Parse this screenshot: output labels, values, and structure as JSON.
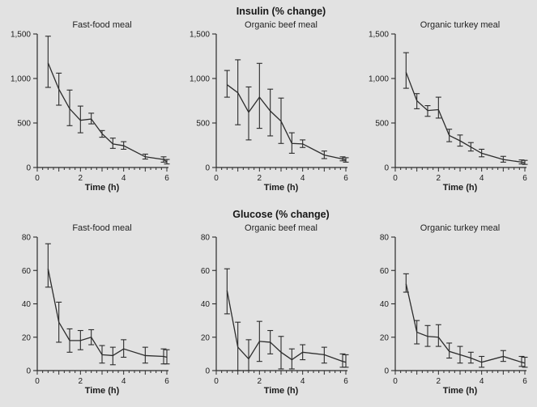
{
  "page": {
    "background": "#e2e2e2",
    "text_color": "#1c1c1c",
    "line_color": "#2c2c2c"
  },
  "figure": {
    "row_titles": [
      "Insulin (% change)",
      "Glucose (% change)"
    ],
    "column_titles": [
      "Fast-food meal",
      "Organic beef meal",
      "Organic turkey meal"
    ],
    "xlabel": "Time (h)"
  },
  "chart_data": [
    {
      "type": "line",
      "group_title": "",
      "row": "Insulin (% change)",
      "title": "Fast-food meal",
      "xlabel": "Time (h)",
      "xlim": [
        0,
        6
      ],
      "ylim": [
        0,
        1500
      ],
      "xticks_labeled": [
        0,
        2,
        4,
        6
      ],
      "xtick_minor_step": 0.25,
      "yticks": [
        0,
        500,
        1000,
        1500
      ],
      "ytick_labels": [
        "0",
        "500",
        "1,000",
        "1,500"
      ],
      "x": [
        0.5,
        1,
        1.5,
        2,
        2.5,
        3,
        3.5,
        4,
        5,
        5.85,
        6
      ],
      "y": [
        1175,
        880,
        660,
        530,
        545,
        380,
        265,
        245,
        120,
        90,
        65
      ],
      "err_lo": [
        900,
        700,
        470,
        390,
        490,
        340,
        215,
        205,
        95,
        60,
        40
      ],
      "err_hi": [
        1475,
        1060,
        870,
        690,
        610,
        415,
        330,
        290,
        150,
        120,
        90
      ],
      "grid": "off",
      "legend": "none"
    },
    {
      "type": "line",
      "group_title": "Insulin (% change)",
      "row": "Insulin (% change)",
      "title": "Organic beef meal",
      "xlabel": "Time (h)",
      "xlim": [
        0,
        6
      ],
      "ylim": [
        0,
        1500
      ],
      "xticks_labeled": [
        0,
        2,
        4,
        6
      ],
      "xtick_minor_step": 0.25,
      "yticks": [
        0,
        500,
        1000,
        1500
      ],
      "ytick_labels": [
        "0",
        "500",
        "1,000",
        "1,500"
      ],
      "x": [
        0.5,
        1,
        1.5,
        2,
        2.5,
        3,
        3.5,
        4,
        5,
        5.85,
        6
      ],
      "y": [
        930,
        840,
        620,
        790,
        635,
        520,
        270,
        265,
        140,
        95,
        85
      ],
      "err_lo": [
        790,
        480,
        310,
        440,
        355,
        270,
        160,
        225,
        100,
        75,
        60
      ],
      "err_hi": [
        1090,
        1210,
        905,
        1170,
        880,
        780,
        390,
        310,
        185,
        120,
        110
      ],
      "grid": "off",
      "legend": "none"
    },
    {
      "type": "line",
      "group_title": "",
      "row": "Insulin (% change)",
      "title": "Organic turkey meal",
      "xlabel": "Time (h)",
      "xlim": [
        0,
        6
      ],
      "ylim": [
        0,
        1500
      ],
      "xticks_labeled": [
        0,
        2,
        4,
        6
      ],
      "xtick_minor_step": 0.25,
      "yticks": [
        0,
        500,
        1000,
        1500
      ],
      "ytick_labels": [
        "0",
        "500",
        "1,000",
        "1,500"
      ],
      "x": [
        0.5,
        1,
        1.5,
        2,
        2.5,
        3,
        3.5,
        4,
        5,
        5.85,
        6
      ],
      "y": [
        1070,
        750,
        640,
        650,
        360,
        300,
        230,
        160,
        90,
        60,
        55
      ],
      "err_lo": [
        890,
        660,
        575,
        555,
        290,
        240,
        185,
        120,
        60,
        40,
        35
      ],
      "err_hi": [
        1290,
        830,
        695,
        790,
        430,
        365,
        280,
        205,
        125,
        85,
        80
      ],
      "grid": "off",
      "legend": "none"
    },
    {
      "type": "line",
      "group_title": "",
      "row": "Glucose (% change)",
      "title": "Fast-food meal",
      "xlabel": "Time (h)",
      "xlim": [
        0,
        6
      ],
      "ylim": [
        0,
        80
      ],
      "xticks_labeled": [
        0,
        2,
        4,
        6
      ],
      "xtick_minor_step": 0.25,
      "yticks": [
        0,
        20,
        40,
        60,
        80
      ],
      "ytick_labels": [
        "0",
        "20",
        "40",
        "60",
        "80"
      ],
      "x": [
        0.5,
        1,
        1.5,
        2,
        2.5,
        3,
        3.5,
        4,
        5,
        5.85,
        6
      ],
      "y": [
        61,
        29,
        18,
        18,
        20,
        9.5,
        9,
        13,
        9,
        8.5,
        8
      ],
      "err_lo": [
        50,
        17,
        11,
        12.5,
        15.5,
        4.5,
        3.5,
        8,
        4.5,
        4,
        4
      ],
      "err_hi": [
        76,
        41,
        25,
        24,
        24.5,
        15,
        14,
        18.5,
        14,
        13,
        12.5
      ],
      "grid": "off",
      "legend": "none"
    },
    {
      "type": "line",
      "group_title": "Glucose (% change)",
      "row": "Glucose (% change)",
      "title": "Organic beef meal",
      "xlabel": "Time (h)",
      "xlim": [
        0,
        6
      ],
      "ylim": [
        0,
        80
      ],
      "xticks_labeled": [
        0,
        2,
        4,
        6
      ],
      "xtick_minor_step": 0.25,
      "yticks": [
        0,
        20,
        40,
        60,
        80
      ],
      "ytick_labels": [
        "0",
        "20",
        "40",
        "60",
        "80"
      ],
      "x": [
        0.5,
        1,
        1.5,
        2,
        2.5,
        3,
        3.5,
        4,
        5,
        5.85,
        6
      ],
      "y": [
        48,
        14,
        7,
        17.5,
        17,
        11,
        6.5,
        11,
        9.5,
        5.5,
        5
      ],
      "err_lo": [
        34,
        0,
        0,
        5.5,
        10,
        1,
        1,
        6.5,
        4.5,
        2,
        2
      ],
      "err_hi": [
        61,
        29,
        18.5,
        29.5,
        24,
        20.5,
        13,
        15.5,
        14,
        10,
        9.5
      ],
      "grid": "off",
      "legend": "none"
    },
    {
      "type": "line",
      "group_title": "",
      "row": "Glucose (% change)",
      "title": "Organic turkey meal",
      "xlabel": "Time (h)",
      "xlim": [
        0,
        6
      ],
      "ylim": [
        0,
        80
      ],
      "xticks_labeled": [
        0,
        2,
        4,
        6
      ],
      "xtick_minor_step": 0.25,
      "yticks": [
        0,
        20,
        40,
        60,
        80
      ],
      "ytick_labels": [
        "0",
        "20",
        "40",
        "60",
        "80"
      ],
      "x": [
        0.5,
        1,
        1.5,
        2,
        2.5,
        3,
        3.5,
        4,
        5,
        5.85,
        6
      ],
      "y": [
        52,
        23,
        20.5,
        20,
        11.5,
        9.5,
        7.5,
        5,
        8.5,
        5,
        4.5
      ],
      "err_lo": [
        47,
        16,
        14.5,
        14.5,
        7.5,
        4.5,
        4.5,
        2,
        5.5,
        2.5,
        2
      ],
      "err_hi": [
        58,
        30,
        27,
        27.5,
        16.5,
        14.5,
        11,
        8.5,
        12,
        8.5,
        8
      ],
      "grid": "off",
      "legend": "none"
    }
  ]
}
